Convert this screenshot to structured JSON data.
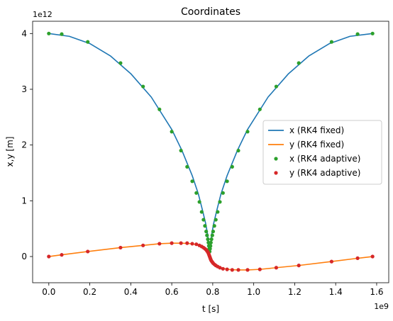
{
  "chart_data": {
    "type": "line",
    "title": "Coordinates",
    "xlabel": "t [s]",
    "ylabel": "x,y [m]",
    "x_offset_text": "1e9",
    "y_offset_text": "1e12",
    "xlim": [
      -0.079,
      1.659
    ],
    "ylim": [
      -0.47,
      4.22
    ],
    "x_ticks": [
      0.0,
      0.2,
      0.4,
      0.6,
      0.8,
      1.0,
      1.2,
      1.4,
      1.6
    ],
    "x_tick_labels": [
      "0.0",
      "0.2",
      "0.4",
      "0.6",
      "0.8",
      "1.0",
      "1.2",
      "1.4",
      "1.6"
    ],
    "y_ticks": [
      0,
      1,
      2,
      3,
      4
    ],
    "y_tick_labels": [
      "0",
      "1",
      "2",
      "3",
      "4"
    ],
    "grid": false,
    "legend_position": "center-right",
    "x_units": "1e9 s",
    "y_units": "1e12 m",
    "series": [
      {
        "name": "x (RK4 fixed)",
        "kind": "line",
        "color": "#1f77b4",
        "points": [
          [
            0.0,
            4.0
          ],
          [
            0.1,
            3.95
          ],
          [
            0.2,
            3.82
          ],
          [
            0.3,
            3.6
          ],
          [
            0.4,
            3.28
          ],
          [
            0.5,
            2.86
          ],
          [
            0.6,
            2.28
          ],
          [
            0.65,
            1.9
          ],
          [
            0.7,
            1.45
          ],
          [
            0.73,
            1.12
          ],
          [
            0.75,
            0.83
          ],
          [
            0.765,
            0.6
          ],
          [
            0.775,
            0.4
          ],
          [
            0.781,
            0.22
          ],
          [
            0.785,
            0.08
          ],
          [
            0.789,
            0.22
          ],
          [
            0.795,
            0.4
          ],
          [
            0.805,
            0.6
          ],
          [
            0.82,
            0.83
          ],
          [
            0.84,
            1.12
          ],
          [
            0.87,
            1.45
          ],
          [
            0.92,
            1.9
          ],
          [
            0.97,
            2.28
          ],
          [
            1.07,
            2.86
          ],
          [
            1.17,
            3.28
          ],
          [
            1.27,
            3.6
          ],
          [
            1.37,
            3.82
          ],
          [
            1.47,
            3.95
          ],
          [
            1.58,
            4.0
          ]
        ]
      },
      {
        "name": "y (RK4 fixed)",
        "kind": "line",
        "color": "#ff7f0e",
        "points": [
          [
            0.0,
            0.0
          ],
          [
            0.06,
            0.03
          ],
          [
            0.19,
            0.09
          ],
          [
            0.35,
            0.16
          ],
          [
            0.46,
            0.2
          ],
          [
            0.54,
            0.23
          ],
          [
            0.6,
            0.24
          ],
          [
            0.65,
            0.24
          ],
          [
            0.7,
            0.23
          ],
          [
            0.73,
            0.2
          ],
          [
            0.75,
            0.17
          ],
          [
            0.765,
            0.12
          ],
          [
            0.775,
            0.06
          ],
          [
            0.785,
            0.0
          ],
          [
            0.795,
            -0.06
          ],
          [
            0.805,
            -0.12
          ],
          [
            0.82,
            -0.17
          ],
          [
            0.84,
            -0.2
          ],
          [
            0.87,
            -0.23
          ],
          [
            0.92,
            -0.24
          ],
          [
            0.97,
            -0.24
          ],
          [
            1.03,
            -0.23
          ],
          [
            1.11,
            -0.2
          ],
          [
            1.22,
            -0.16
          ],
          [
            1.38,
            -0.09
          ],
          [
            1.51,
            -0.03
          ],
          [
            1.58,
            0.0
          ]
        ]
      },
      {
        "name": "x (RK4 adaptive)",
        "kind": "markers",
        "color": "#2ca02c",
        "points": [
          [
            0.0,
            4.0
          ],
          [
            0.063,
            3.99
          ],
          [
            0.19,
            3.85
          ],
          [
            0.35,
            3.47
          ],
          [
            0.46,
            3.05
          ],
          [
            0.54,
            2.64
          ],
          [
            0.6,
            2.24
          ],
          [
            0.645,
            1.9
          ],
          [
            0.675,
            1.61
          ],
          [
            0.7,
            1.35
          ],
          [
            0.72,
            1.14
          ],
          [
            0.735,
            0.98
          ],
          [
            0.746,
            0.8
          ],
          [
            0.755,
            0.66
          ],
          [
            0.762,
            0.55
          ],
          [
            0.768,
            0.45
          ],
          [
            0.772,
            0.38
          ],
          [
            0.776,
            0.31
          ],
          [
            0.779,
            0.25
          ],
          [
            0.781,
            0.19
          ],
          [
            0.783,
            0.14
          ],
          [
            0.785,
            0.09
          ],
          [
            0.787,
            0.14
          ],
          [
            0.789,
            0.19
          ],
          [
            0.791,
            0.25
          ],
          [
            0.794,
            0.31
          ],
          [
            0.798,
            0.38
          ],
          [
            0.802,
            0.45
          ],
          [
            0.808,
            0.55
          ],
          [
            0.815,
            0.66
          ],
          [
            0.824,
            0.8
          ],
          [
            0.835,
            0.98
          ],
          [
            0.85,
            1.14
          ],
          [
            0.87,
            1.35
          ],
          [
            0.895,
            1.61
          ],
          [
            0.925,
            1.9
          ],
          [
            0.97,
            2.24
          ],
          [
            1.03,
            2.64
          ],
          [
            1.11,
            3.05
          ],
          [
            1.22,
            3.47
          ],
          [
            1.38,
            3.85
          ],
          [
            1.507,
            3.99
          ],
          [
            1.58,
            4.0
          ]
        ]
      },
      {
        "name": "y (RK4 adaptive)",
        "kind": "markers",
        "color": "#d62728",
        "points": [
          [
            0.0,
            0.0
          ],
          [
            0.063,
            0.03
          ],
          [
            0.19,
            0.09
          ],
          [
            0.35,
            0.16
          ],
          [
            0.46,
            0.2
          ],
          [
            0.54,
            0.23
          ],
          [
            0.6,
            0.24
          ],
          [
            0.645,
            0.24
          ],
          [
            0.675,
            0.24
          ],
          [
            0.7,
            0.23
          ],
          [
            0.72,
            0.22
          ],
          [
            0.735,
            0.2
          ],
          [
            0.746,
            0.18
          ],
          [
            0.755,
            0.16
          ],
          [
            0.762,
            0.14
          ],
          [
            0.768,
            0.12
          ],
          [
            0.772,
            0.1
          ],
          [
            0.776,
            0.08
          ],
          [
            0.779,
            0.06
          ],
          [
            0.781,
            0.04
          ],
          [
            0.783,
            0.02
          ],
          [
            0.785,
            0.0
          ],
          [
            0.787,
            -0.02
          ],
          [
            0.789,
            -0.04
          ],
          [
            0.791,
            -0.06
          ],
          [
            0.794,
            -0.08
          ],
          [
            0.798,
            -0.1
          ],
          [
            0.802,
            -0.12
          ],
          [
            0.808,
            -0.14
          ],
          [
            0.815,
            -0.16
          ],
          [
            0.824,
            -0.18
          ],
          [
            0.835,
            -0.2
          ],
          [
            0.85,
            -0.22
          ],
          [
            0.87,
            -0.23
          ],
          [
            0.895,
            -0.24
          ],
          [
            0.925,
            -0.24
          ],
          [
            0.97,
            -0.24
          ],
          [
            1.03,
            -0.23
          ],
          [
            1.11,
            -0.2
          ],
          [
            1.22,
            -0.16
          ],
          [
            1.38,
            -0.09
          ],
          [
            1.507,
            -0.03
          ],
          [
            1.58,
            0.0
          ]
        ]
      }
    ]
  }
}
